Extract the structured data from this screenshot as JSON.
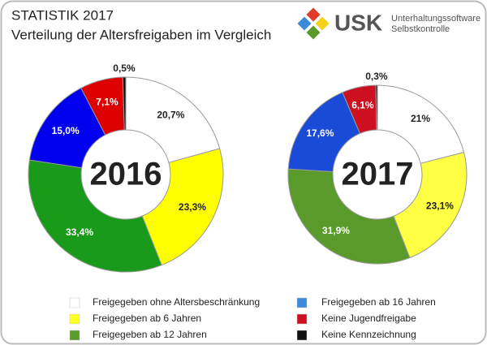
{
  "header": {
    "title": "STATISTIK 2017",
    "subtitle": "Verteilung der Altersfreigaben im Vergleich",
    "logo": "USK",
    "logo_line1": "Unterhaltungssoftware",
    "logo_line2": "Selbstkontrolle"
  },
  "legend": {
    "items": [
      {
        "label": "Freigegeben ohne Altersbeschränkung",
        "color": "#ffffff"
      },
      {
        "label": "Freigegeben ab 6 Jahren",
        "color": "#ffff22"
      },
      {
        "label": "Freigegeben ab 12 Jahren",
        "color": "#5a9a2a"
      },
      {
        "label": "Freigegeben ab 16 Jahren",
        "color": "#3a8ad8"
      },
      {
        "label": "Keine Jugendfreigabe",
        "color": "#cc1020"
      },
      {
        "label": "Keine Kennzeichnung",
        "color": "#111111"
      }
    ]
  },
  "chart_data": [
    {
      "type": "pie",
      "center_label": "2016",
      "values": [
        20.7,
        23.3,
        33.4,
        15.0,
        7.1,
        0.5
      ],
      "value_labels": [
        "20,7%",
        "23,3%",
        "33,4%",
        "15,0%",
        "7,1%",
        "0,5%"
      ],
      "colors": [
        "#ffffff",
        "#ffff00",
        "#1a9a1a",
        "#0000ee",
        "#dd0000",
        "#111111"
      ]
    },
    {
      "type": "pie",
      "center_label": "2017",
      "values": [
        21,
        23.1,
        31.9,
        17.6,
        6.1,
        0.3
      ],
      "value_labels": [
        "21%",
        "23,1%",
        "31,9%",
        "17,6%",
        "6,1%",
        "0,3%"
      ],
      "colors": [
        "#ffffff",
        "#ffff44",
        "#5a9a2a",
        "#1a4ad8",
        "#cc1020",
        "#111111"
      ]
    }
  ]
}
